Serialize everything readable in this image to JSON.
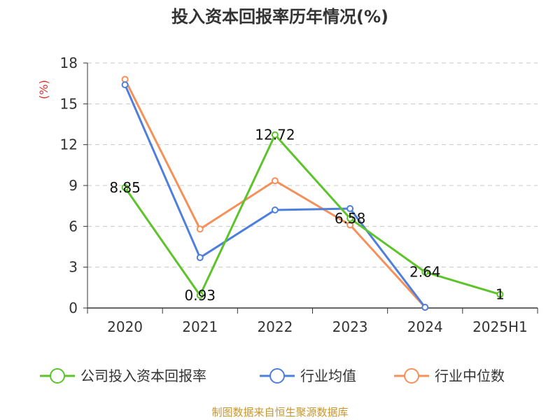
{
  "chart_data": {
    "type": "line",
    "title": "投入资本回报率历年情况(%)",
    "ylabel": "(%)",
    "categories": [
      "2020",
      "2021",
      "2022",
      "2023",
      "2024",
      "2025H1"
    ],
    "ylim": [
      0,
      18
    ],
    "yticks": [
      0,
      3,
      6,
      9,
      12,
      15,
      18
    ],
    "grid": true,
    "legend_position": "bottom",
    "series": [
      {
        "name": "公司投入资本回报率",
        "color": "#5cc42a",
        "values": [
          8.85,
          0.93,
          12.72,
          6.58,
          2.64,
          1
        ],
        "labels": [
          "8.85",
          "0.93",
          "12.72",
          "6.58",
          "2.64",
          "1"
        ]
      },
      {
        "name": "行业均值",
        "color": "#4f7fdc",
        "values": [
          16.4,
          3.7,
          7.2,
          7.3,
          0.05,
          null
        ]
      },
      {
        "name": "行业中位数",
        "color": "#f5905a",
        "values": [
          16.8,
          5.8,
          9.35,
          6.1,
          0.05,
          null
        ]
      }
    ],
    "source": "制图数据来自恒生聚源数据库"
  }
}
